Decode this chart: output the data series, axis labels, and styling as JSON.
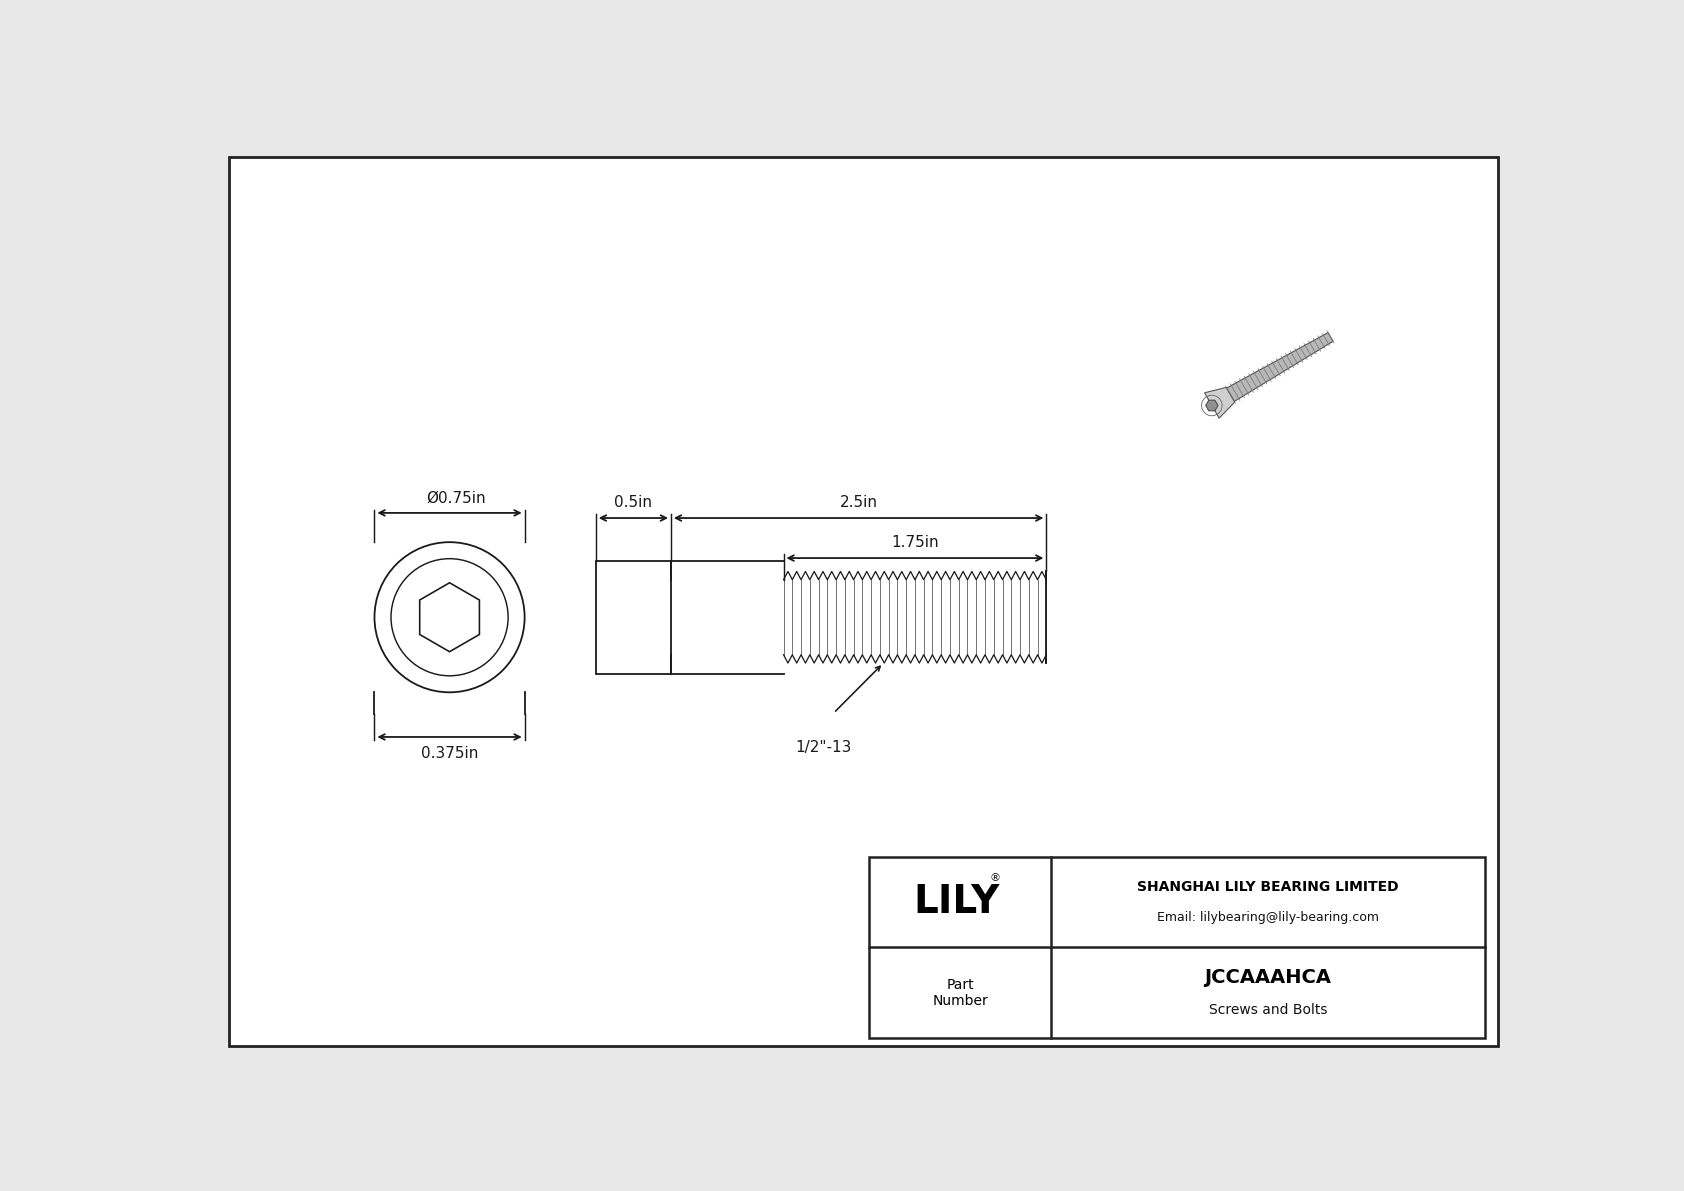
{
  "bg_color": "#e8e8e8",
  "drawing_bg": "#ffffff",
  "line_color": "#1a1a1a",
  "dim_color": "#1a1a1a",
  "title": "JCCAAAHCA",
  "subtitle": "Screws and Bolts",
  "company": "SHANGHAI LILY BEARING LIMITED",
  "email": "Email: lilybearing@lily-bearing.com",
  "part_label": "Part\nNumber",
  "dim_head_diameter": "Ø0.75in",
  "dim_socket_diameter": "0.375in",
  "dim_head_length": "0.5in",
  "dim_shaft_length": "2.5in",
  "dim_thread_length": "1.75in",
  "dim_thread_label": "1/2\"-13",
  "border_color": "#222222",
  "lw": 1.3
}
